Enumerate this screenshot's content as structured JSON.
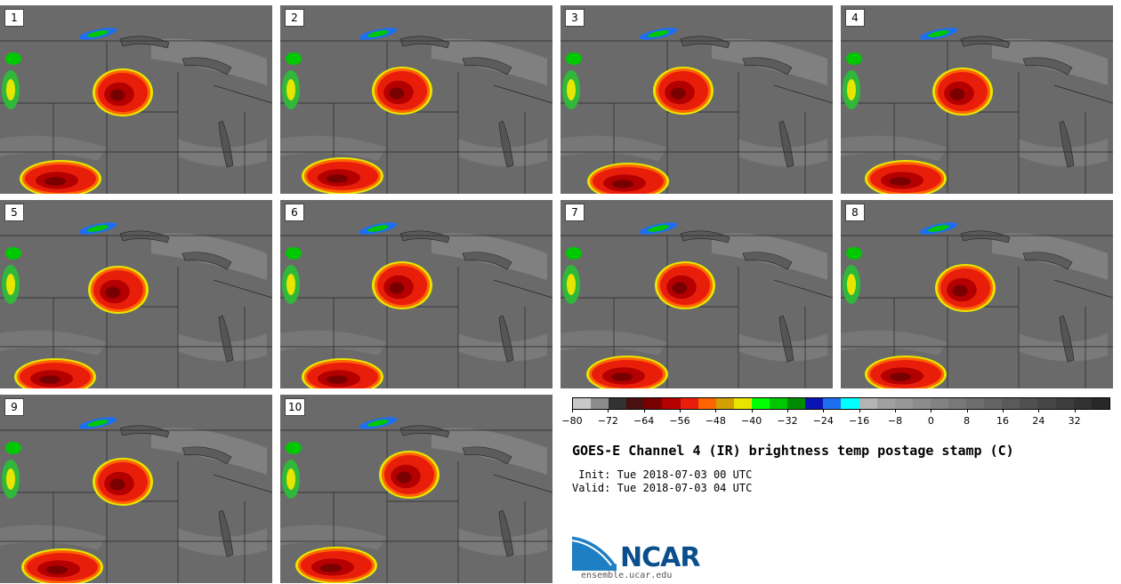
{
  "panels": [
    {
      "label": "1"
    },
    {
      "label": "2"
    },
    {
      "label": "3"
    },
    {
      "label": "4"
    },
    {
      "label": "5"
    },
    {
      "label": "6"
    },
    {
      "label": "7"
    },
    {
      "label": "8"
    },
    {
      "label": "9"
    },
    {
      "label": "10"
    }
  ],
  "colorbar": {
    "colors": [
      "#c8c8c8",
      "#8c8c8c",
      "#323232",
      "#4a1010",
      "#780000",
      "#b40000",
      "#e81e0a",
      "#ff6400",
      "#d2a000",
      "#e6e600",
      "#00ff00",
      "#00c800",
      "#008c00",
      "#0a14b4",
      "#1e6ef0",
      "#00ffff",
      "#b4b4b4",
      "#a0a0a0",
      "#969696",
      "#8c8c8c",
      "#828282",
      "#787878",
      "#6e6e6e",
      "#646464",
      "#5a5a5a",
      "#505050",
      "#464646",
      "#3c3c3c",
      "#323232",
      "#282828"
    ],
    "ticks": [
      "−80",
      "−72",
      "−64",
      "−56",
      "−48",
      "−40",
      "−32",
      "−24",
      "−16",
      "−8",
      "0",
      "8",
      "16",
      "24",
      "32"
    ]
  },
  "title": "GOES-E Channel 4 (IR) brightness temp postage stamp (C)",
  "init": " Init: Tue 2018-07-03 00 UTC",
  "valid": "Valid: Tue 2018-07-03 04 UTC",
  "logo": {
    "name": "NCAR",
    "site": "ensemble.ucar.edu"
  }
}
